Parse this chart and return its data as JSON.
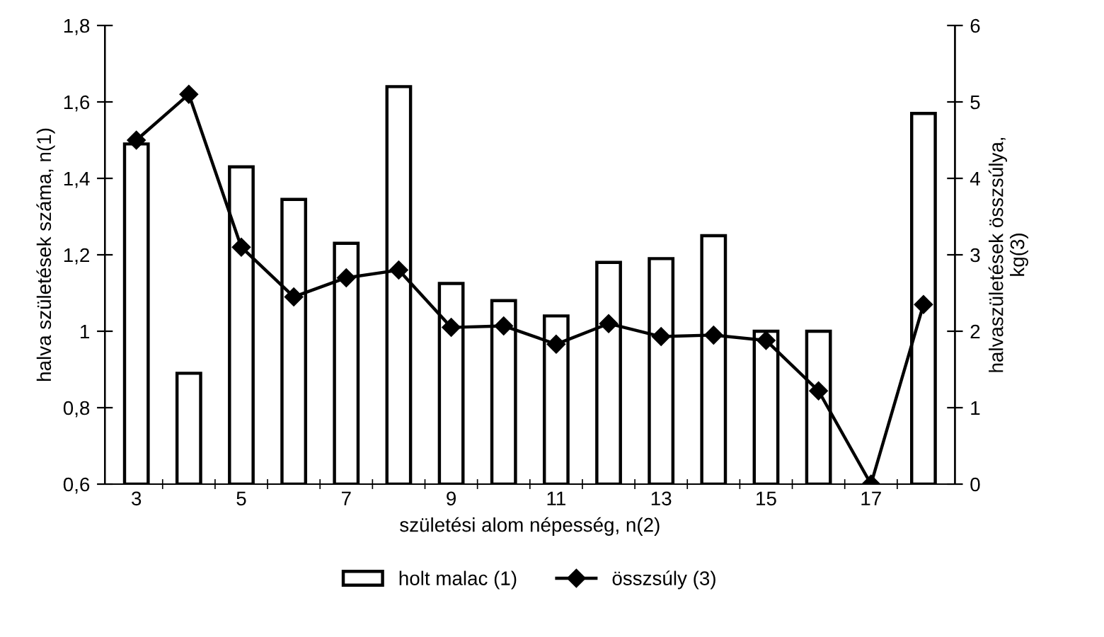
{
  "chart_data": {
    "type": "bar",
    "categories": [
      "3",
      null,
      "5",
      null,
      "7",
      null,
      "9",
      null,
      "11",
      null,
      "13",
      null,
      "15",
      null,
      "17",
      null
    ],
    "series": [
      {
        "name": "holt malac (1)",
        "color": "#ffffff",
        "values": [
          1.49,
          0.89,
          1.43,
          1.345,
          1.23,
          1.64,
          1.125,
          1.08,
          1.04,
          1.18,
          1.19,
          1.25,
          1.0,
          1.0,
          null,
          1.57
        ]
      },
      {
        "name": "összsúly (3)",
        "type": "line",
        "axis": "y2",
        "color": "#000000",
        "marker": "diamond",
        "values": [
          4.5,
          5.1,
          3.1,
          2.45,
          2.7,
          2.8,
          2.05,
          2.07,
          1.83,
          2.1,
          1.93,
          1.95,
          1.88,
          1.22,
          0,
          2.35
        ]
      }
    ],
    "xlabel": "születési alom népesség, n(2)",
    "ylabel": "halva születések száma, n(1)",
    "y2label": "halvaszületések összsúlya,\nkg(3)",
    "ylim": [
      0.6,
      1.8
    ],
    "yticks": [
      {
        "value": 0.6,
        "label": "0,6"
      },
      {
        "value": 0.8,
        "label": "0,8"
      },
      1,
      {
        "value": 1.2,
        "label": "1,2"
      },
      {
        "value": 1.4,
        "label": "1,4"
      },
      {
        "value": 1.6,
        "label": "1,6"
      },
      {
        "value": 1.8,
        "label": "1,8"
      }
    ],
    "y2lim": [
      0,
      6
    ],
    "y2ticks": [
      0,
      1,
      2,
      3,
      4,
      5,
      6
    ],
    "legend": "bottom",
    "grid": false
  }
}
